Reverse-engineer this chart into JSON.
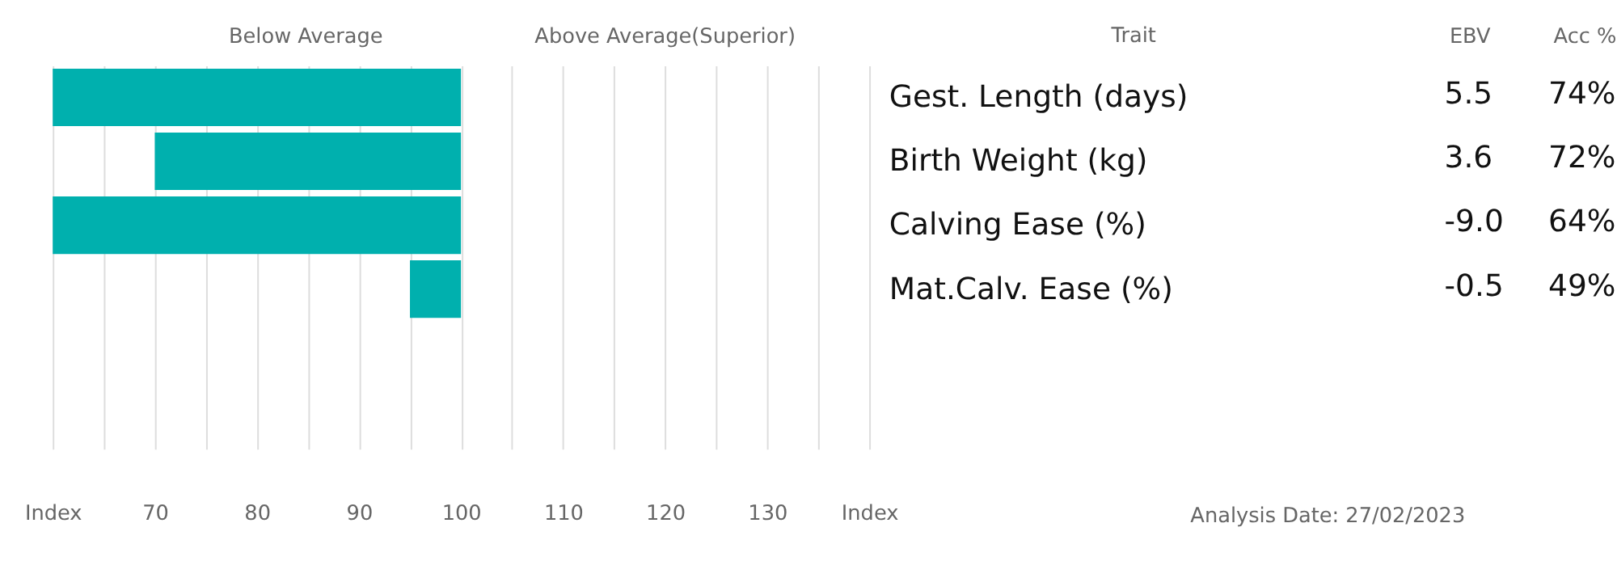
{
  "chart_data": [
    {
      "type": "bar",
      "orientation": "horizontal",
      "categories": [
        "Gest. Length (days)",
        "Birth Weight (kg)",
        "Calving Ease (%)",
        "Mat.Calv. Ease (%)",
        null,
        null
      ],
      "base": [
        100,
        100,
        100,
        100,
        null,
        null
      ],
      "values": [
        -40,
        -30,
        -40,
        -5,
        null,
        null
      ],
      "color": "#00b0ae",
      "xlim": [
        60,
        140
      ],
      "xticks": [
        {
          "value": 60,
          "label": "Index"
        },
        {
          "value": 65,
          "label": null
        },
        70,
        {
          "value": 75,
          "label": null
        },
        80,
        {
          "value": 85,
          "label": null
        },
        90,
        {
          "value": 95,
          "label": null
        },
        100,
        {
          "value": 105,
          "label": null
        },
        110,
        {
          "value": 115,
          "label": null
        },
        120,
        {
          "value": 125,
          "label": null
        },
        130,
        {
          "value": 135,
          "label": null
        },
        {
          "value": 140,
          "label": "Index"
        }
      ],
      "grid": "x",
      "ylabel": "Trait",
      "annotations": [
        "Below Average",
        "Above Average(Superior)"
      ]
    },
    {
      "type": "other",
      "annotations": [
        "EBV",
        "Acc %",
        "5.5",
        "74%",
        "3.6",
        "72%",
        "-9.0",
        "64%",
        "-0.5",
        "49%",
        "Analysis Date: 27/02/2023"
      ]
    }
  ]
}
